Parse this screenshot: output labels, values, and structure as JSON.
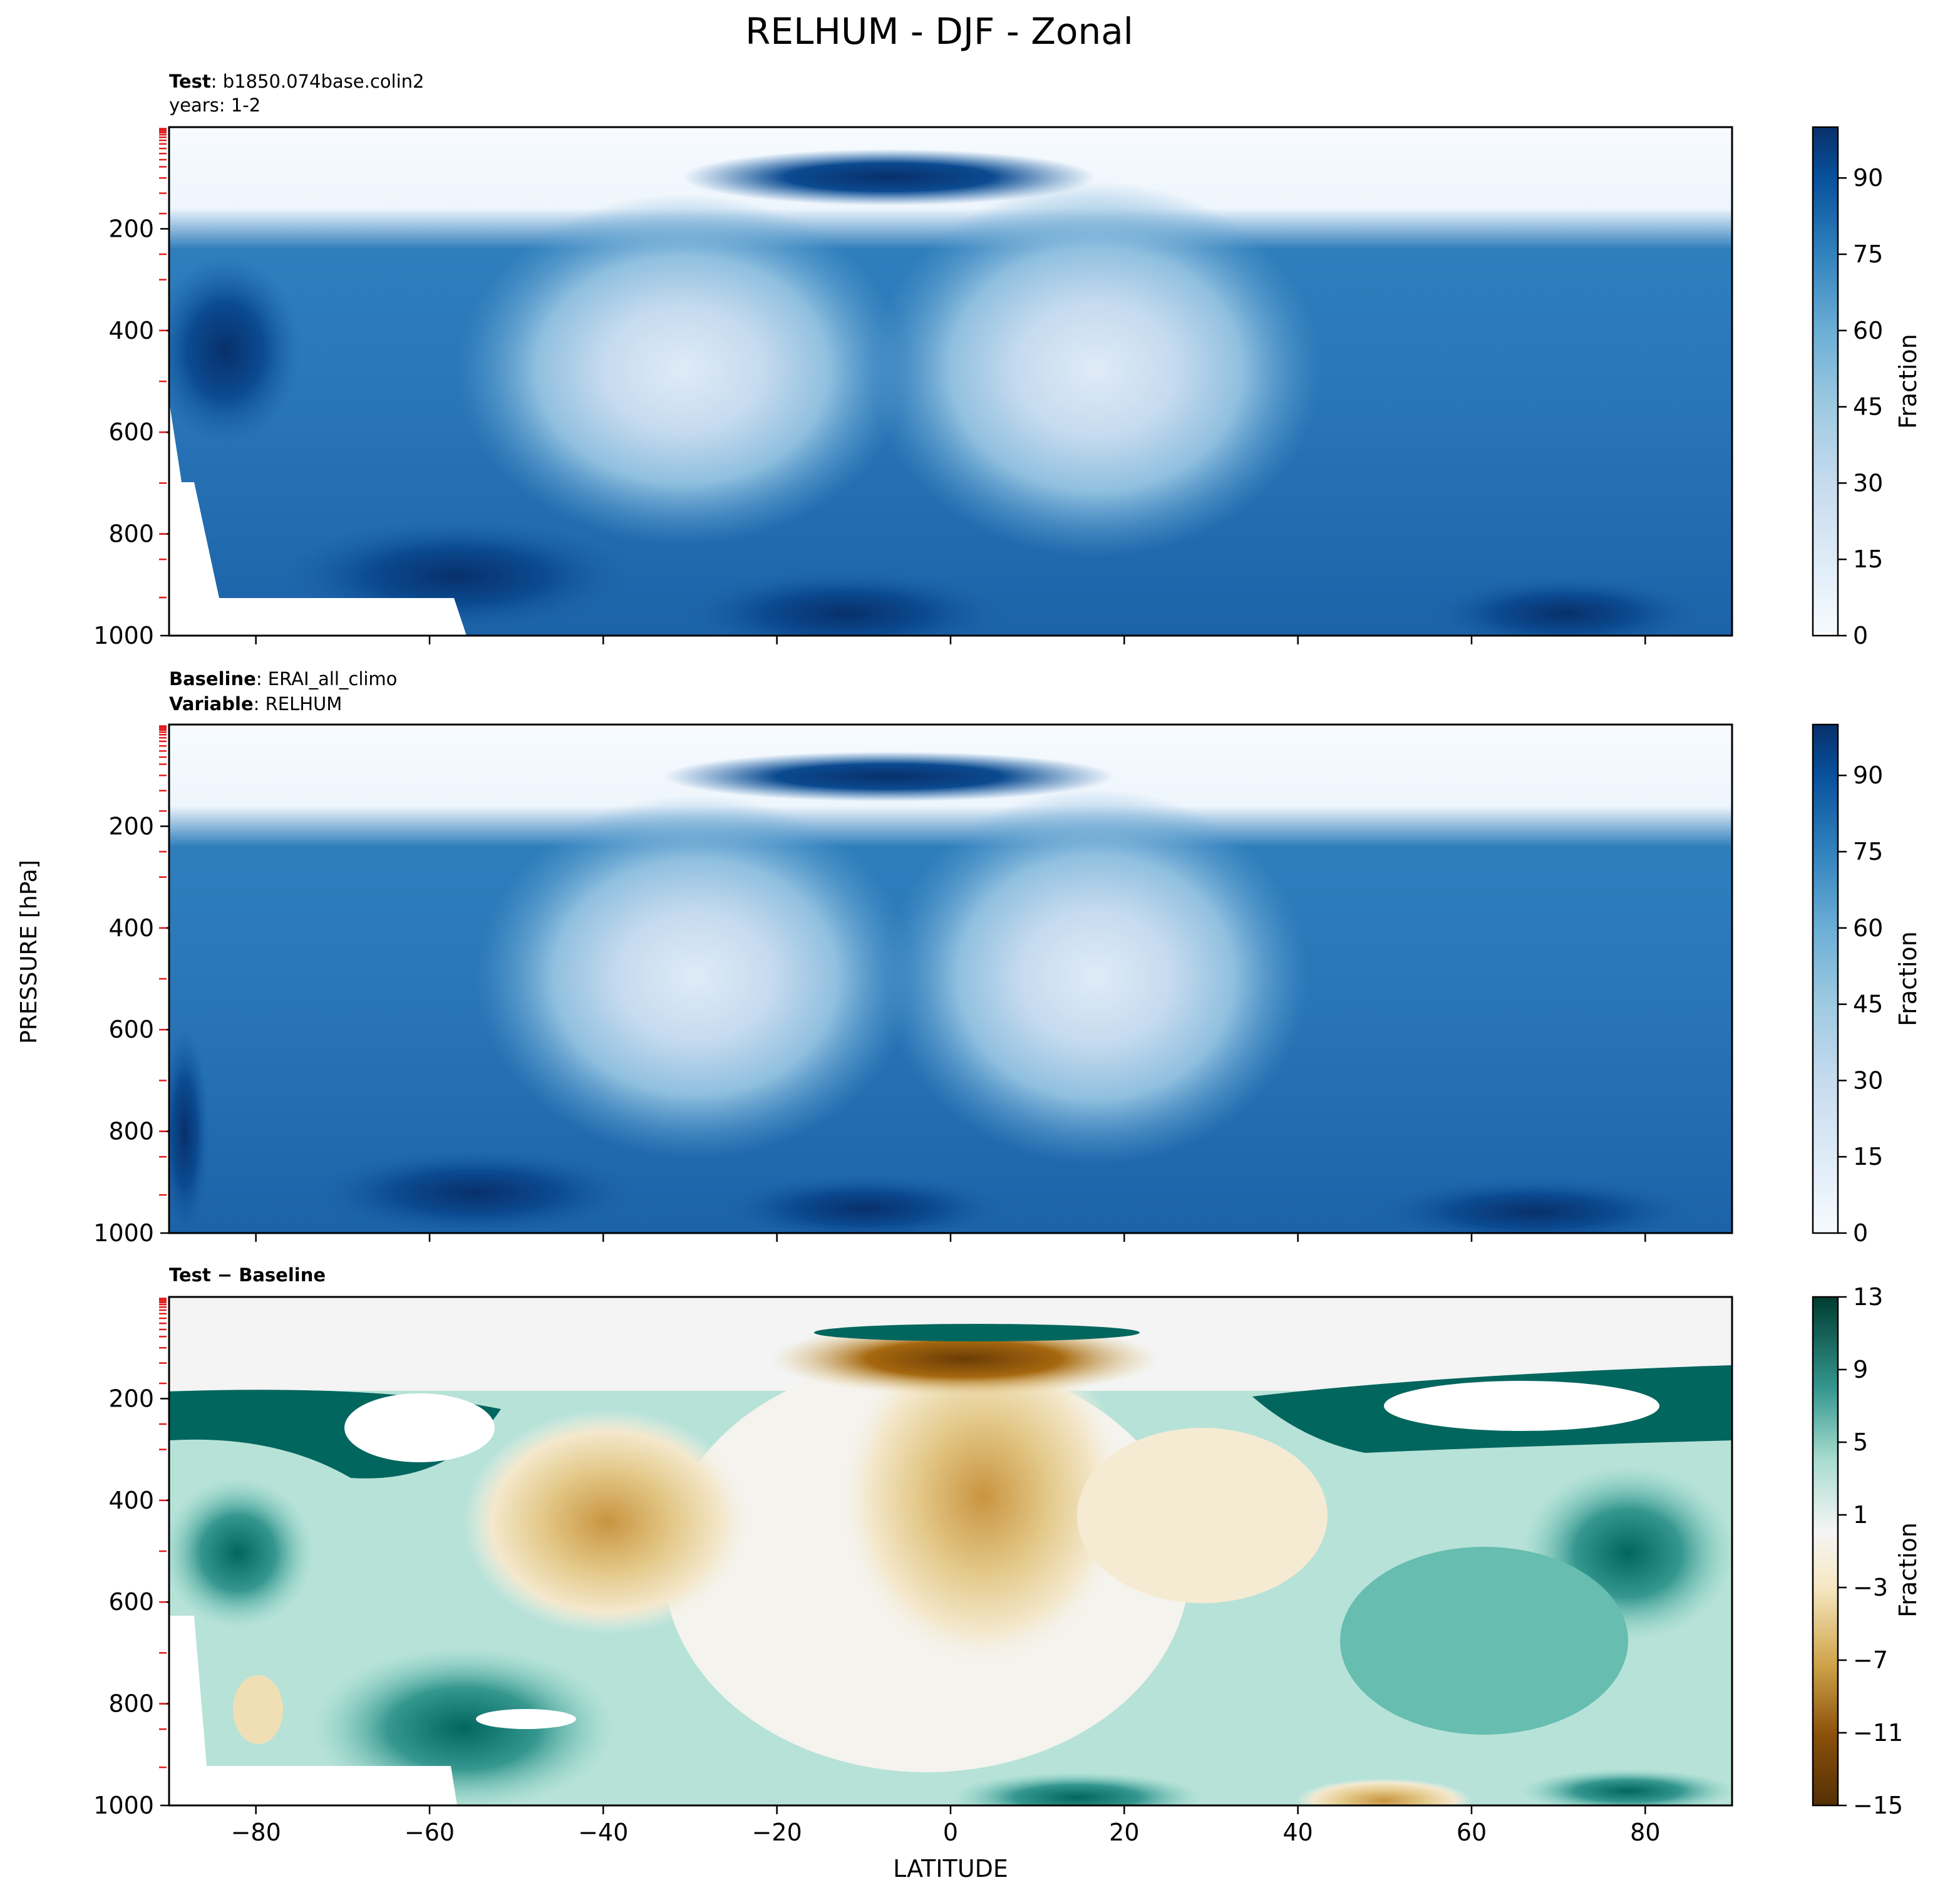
{
  "figure": {
    "title": "RELHUM - DJF - Zonal",
    "shared_ylabel": "PRESSURE [hPa]",
    "shared_xlabel": "LATITUDE"
  },
  "chart_data": [
    {
      "type": "heatmap",
      "subplot": "test",
      "header_lines": [
        {
          "bold": "Test",
          "rest": ": b1850.074base.colin2"
        },
        {
          "bold": "",
          "rest": "years: 1-2"
        }
      ],
      "xlim": [
        -90,
        90
      ],
      "ylim": [
        1000,
        0
      ],
      "y_inverted": true,
      "x_ticks": [
        -80,
        -60,
        -40,
        -20,
        0,
        20,
        40,
        60,
        80
      ],
      "x_tick_labels_shown": false,
      "y_ticks": [
        200,
        400,
        600,
        800,
        1000
      ],
      "colormap": "Blues",
      "colorbar": {
        "label": "Fraction",
        "min": 0,
        "max": 100,
        "ticks": [
          0,
          15,
          30,
          45,
          60,
          75,
          90
        ]
      },
      "features": [
        {
          "lat": -30,
          "p": 500,
          "value": 25,
          "desc": "SH subtropical dry minimum"
        },
        {
          "lat": 15,
          "p": 500,
          "value": 20,
          "desc": "NH subtropical dry minimum"
        },
        {
          "lat": -5,
          "p": 100,
          "value": 85,
          "desc": "tropical tropopause moist layer"
        },
        {
          "lat": 0,
          "p": 950,
          "value": 85,
          "desc": "tropical boundary layer"
        },
        {
          "lat": -60,
          "p": 900,
          "value": 90,
          "desc": "SH storm track low levels"
        },
        {
          "lat": 75,
          "p": 950,
          "value": 95,
          "desc": "Arctic low levels"
        }
      ]
    },
    {
      "type": "heatmap",
      "subplot": "baseline",
      "header_lines": [
        {
          "bold": "Baseline",
          "rest": ": ERAI_all_climo"
        },
        {
          "bold": "Variable",
          "rest": ": RELHUM"
        }
      ],
      "xlim": [
        -90,
        90
      ],
      "ylim": [
        1000,
        0
      ],
      "y_inverted": true,
      "x_ticks": [
        -80,
        -60,
        -40,
        -20,
        0,
        20,
        40,
        60,
        80
      ],
      "x_tick_labels_shown": false,
      "y_ticks": [
        200,
        400,
        600,
        800,
        1000
      ],
      "colormap": "Blues",
      "colorbar": {
        "label": "Fraction",
        "min": 0,
        "max": 100,
        "ticks": [
          0,
          15,
          30,
          45,
          60,
          75,
          90
        ]
      },
      "features": [
        {
          "lat": -28,
          "p": 520,
          "value": 25,
          "desc": "SH subtropical dry minimum"
        },
        {
          "lat": 17,
          "p": 520,
          "value": 20,
          "desc": "NH subtropical dry minimum"
        },
        {
          "lat": -5,
          "p": 100,
          "value": 95,
          "desc": "tropical tropopause moist layer"
        },
        {
          "lat": -50,
          "p": 950,
          "value": 90,
          "desc": "SH low-level maximum"
        },
        {
          "lat": 0,
          "p": 950,
          "value": 85,
          "desc": "tropical boundary layer"
        }
      ]
    },
    {
      "type": "heatmap",
      "subplot": "difference",
      "header_lines": [
        {
          "bold": "Test − Baseline",
          "rest": ""
        }
      ],
      "xlim": [
        -90,
        90
      ],
      "ylim": [
        1000,
        0
      ],
      "y_inverted": true,
      "x_ticks": [
        -80,
        -60,
        -40,
        -20,
        0,
        20,
        40,
        60,
        80
      ],
      "x_tick_labels_shown": true,
      "y_ticks": [
        200,
        400,
        600,
        800,
        1000
      ],
      "colormap": "BrBG",
      "colorbar": {
        "label": "Fraction",
        "min": -15,
        "max": 13,
        "ticks": [
          -15,
          -11,
          -7,
          -3,
          1,
          5,
          9,
          13
        ]
      },
      "features": [
        {
          "lat": -5,
          "p": 110,
          "value": -15,
          "desc": "tropopause dry difference"
        },
        {
          "lat": 3,
          "p": 380,
          "value": -8,
          "desc": "tropical upper troposphere dry"
        },
        {
          "lat": -35,
          "p": 380,
          "value": -5,
          "desc": "SH subtropics dry"
        },
        {
          "lat": -70,
          "p": 250,
          "value": 13,
          "desc": "SH tropopause moist"
        },
        {
          "lat": 70,
          "p": 240,
          "value": 13,
          "desc": "NH tropopause moist"
        },
        {
          "lat": -55,
          "p": 840,
          "value": 13,
          "desc": "SH low-level moist"
        },
        {
          "lat": 48,
          "p": 980,
          "value": -4,
          "desc": "NH midlatitude surface dry"
        }
      ]
    }
  ]
}
